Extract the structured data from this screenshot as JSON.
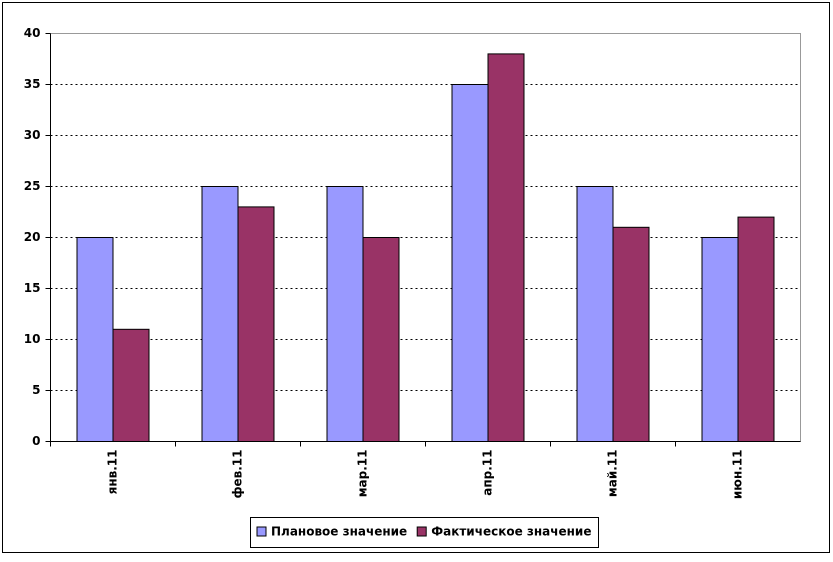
{
  "chart_data": {
    "type": "bar",
    "categories": [
      "янв.11",
      "фев.11",
      "мар.11",
      "апр.11",
      "май.11",
      "июн.11"
    ],
    "series": [
      {
        "name": "Плановое значение",
        "color": "#9999ff",
        "values": [
          20,
          25,
          25,
          35,
          25,
          20
        ]
      },
      {
        "name": "Фактическое значение",
        "color": "#993366",
        "values": [
          11,
          23,
          20,
          38,
          21,
          22
        ]
      }
    ],
    "ylim": [
      0,
      40
    ],
    "yticks": [
      0,
      5,
      10,
      15,
      20,
      25,
      30,
      35,
      40
    ],
    "grid": true,
    "legend": "bottom"
  }
}
